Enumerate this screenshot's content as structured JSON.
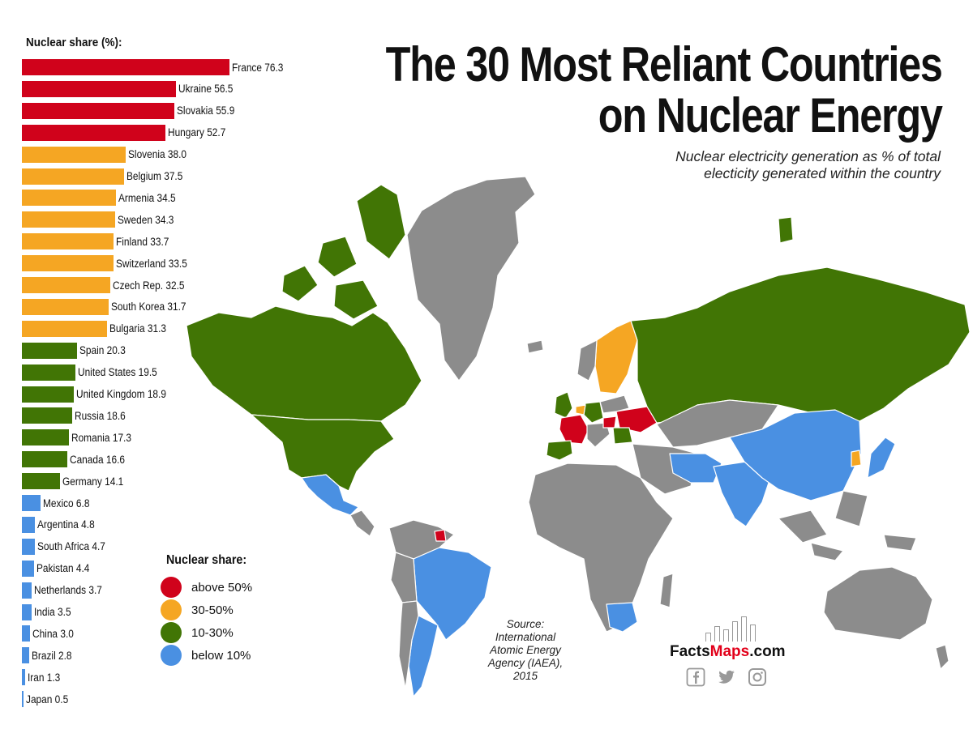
{
  "title_line1": "The 30 Most Reliant Countries",
  "title_line2": "on Nuclear Energy",
  "subtitle_line1": "Nuclear electricity generation as % of total",
  "subtitle_line2": "electicity generated within the country",
  "bar_chart_title": "Nuclear share (%):",
  "colors": {
    "above50": "#d0021b",
    "30to50": "#f5a623",
    "10to30": "#417505",
    "below10": "#4a90e2",
    "no_data": "#8c8c8c",
    "background": "#ffffff"
  },
  "chart_data": {
    "type": "bar",
    "title": "Nuclear share (%):",
    "orientation": "horizontal",
    "categories": [
      "France",
      "Ukraine",
      "Slovakia",
      "Hungary",
      "Slovenia",
      "Belgium",
      "Armenia",
      "Sweden",
      "Finland",
      "Switzerland",
      "Czech Rep.",
      "South Korea",
      "Bulgaria",
      "Spain",
      "United States",
      "United Kingdom",
      "Russia",
      "Romania",
      "Canada",
      "Germany",
      "Mexico",
      "Argentina",
      "South Africa",
      "Pakistan",
      "Netherlands",
      "India",
      "China",
      "Brazil",
      "Iran",
      "Japan"
    ],
    "values": [
      76.3,
      56.5,
      55.9,
      52.7,
      38.0,
      37.5,
      34.5,
      34.3,
      33.7,
      33.5,
      32.5,
      31.7,
      31.3,
      20.3,
      19.5,
      18.9,
      18.6,
      17.3,
      16.6,
      14.1,
      6.8,
      4.8,
      4.7,
      4.4,
      3.7,
      3.5,
      3.0,
      2.8,
      1.3,
      0.5
    ],
    "labels": [
      "France 76.3",
      "Ukraine 56.5",
      "Slovakia 55.9",
      "Hungary 52.7",
      "Slovenia 38.0",
      "Belgium 37.5",
      "Armenia 34.5",
      "Sweden 34.3",
      "Finland 33.7",
      "Switzerland 33.5",
      "Czech Rep. 32.5",
      "South Korea 31.7",
      "Bulgaria 31.3",
      "Spain 20.3",
      "United States 19.5",
      "United Kingdom 18.9",
      "Russia 18.6",
      "Romania 17.3",
      "Canada 16.6",
      "Germany 14.1",
      "Mexico 6.8",
      "Argentina 4.8",
      "South Africa 4.7",
      "Pakistan 4.4",
      "Netherlands 3.7",
      "India 3.5",
      "China 3.0",
      "Brazil 2.8",
      "Iran 1.3",
      "Japan 0.5"
    ],
    "groups": [
      "above50",
      "above50",
      "above50",
      "above50",
      "30to50",
      "30to50",
      "30to50",
      "30to50",
      "30to50",
      "30to50",
      "30to50",
      "30to50",
      "30to50",
      "10to30",
      "10to30",
      "10to30",
      "10to30",
      "10to30",
      "10to30",
      "10to30",
      "below10",
      "below10",
      "below10",
      "below10",
      "below10",
      "below10",
      "below10",
      "below10",
      "below10",
      "below10"
    ]
  },
  "legend": {
    "title": "Nuclear share:",
    "items": [
      {
        "key": "above50",
        "label": "above 50%"
      },
      {
        "key": "30to50",
        "label": "30-50%"
      },
      {
        "key": "10to30",
        "label": "10-30%"
      },
      {
        "key": "below10",
        "label": "below 10%"
      }
    ]
  },
  "source": {
    "lines": [
      "Source:",
      "International",
      "Atomic Energy",
      "Agency (IAEA),",
      "2015"
    ]
  },
  "brand": {
    "name_part1": "Facts",
    "name_part2": "Maps",
    "name_part3": ".com",
    "social_icons": [
      "facebook-icon",
      "twitter-icon",
      "instagram-icon"
    ]
  }
}
